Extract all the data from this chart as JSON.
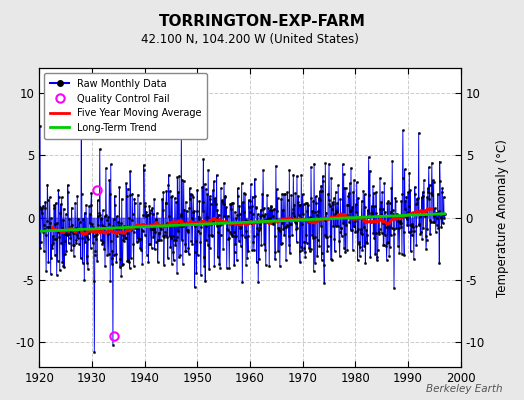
{
  "title": "TORRINGTON-EXP-FARM",
  "subtitle": "42.100 N, 104.200 W (United States)",
  "ylabel": "Temperature Anomaly (°C)",
  "watermark": "Berkeley Earth",
  "xlim": [
    1920,
    2000
  ],
  "ylim": [
    -12,
    12
  ],
  "yticks": [
    -10,
    -5,
    0,
    5,
    10
  ],
  "xticks": [
    1920,
    1930,
    1940,
    1950,
    1960,
    1970,
    1980,
    1990,
    2000
  ],
  "raw_color": "#0000ee",
  "marker_color": "#000000",
  "qc_color": "#ff00ff",
  "moving_avg_color": "#ff0000",
  "trend_color": "#00cc00",
  "bg_color": "#e8e8e8",
  "plot_bg": "#ffffff",
  "grid_color": "#cccccc",
  "seed": 137
}
